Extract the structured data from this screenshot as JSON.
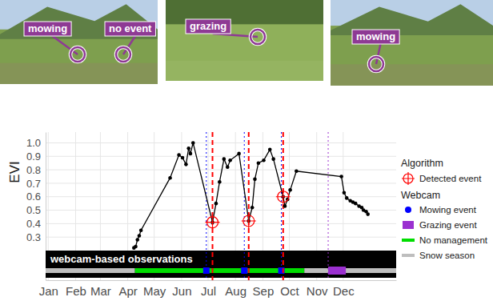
{
  "photos": [
    {
      "annotations": [
        "mowing",
        "no event"
      ]
    },
    {
      "annotations": [
        "grazing"
      ]
    },
    {
      "annotations": [
        "mowing"
      ]
    }
  ],
  "chart_data": {
    "type": "line",
    "y_label": "EVI",
    "x": [
      97,
      99,
      101,
      103,
      105,
      138,
      148,
      152,
      156,
      159,
      161,
      164,
      186,
      190,
      194,
      199,
      203,
      206,
      216,
      227,
      231,
      234,
      238,
      244,
      251,
      255,
      266,
      268,
      271,
      274,
      281,
      332,
      335,
      338,
      342,
      345,
      348,
      352,
      355,
      357,
      360,
      362
    ],
    "series": [
      {
        "color": "#000000",
        "marker": "circle",
        "values": [
          0.22,
          0.23,
          0.28,
          0.31,
          0.35,
          0.74,
          0.91,
          0.89,
          0.84,
          0.96,
          0.92,
          1.0,
          0.41,
          0.55,
          0.71,
          0.88,
          0.82,
          0.87,
          0.92,
          0.42,
          0.52,
          0.73,
          0.85,
          0.87,
          0.95,
          0.88,
          0.6,
          0.53,
          0.58,
          0.65,
          0.79,
          0.75,
          0.63,
          0.59,
          0.57,
          0.56,
          0.55,
          0.53,
          0.52,
          0.5,
          0.49,
          0.47
        ]
      }
    ],
    "xlim": [
      -3,
      394
    ],
    "xticks": [
      {
        "value": 0,
        "label": "Jan"
      },
      {
        "value": 31,
        "label": "Feb"
      },
      {
        "value": 59,
        "label": "Mar"
      },
      {
        "value": 90,
        "label": "Apr"
      },
      {
        "value": 120,
        "label": "May"
      },
      {
        "value": 151,
        "label": "Jun"
      },
      {
        "value": 181,
        "label": "Jul"
      },
      {
        "value": 212,
        "label": "Aug"
      },
      {
        "value": 243,
        "label": "Sep"
      },
      {
        "value": 273,
        "label": "Oct"
      },
      {
        "value": 304,
        "label": "Nov"
      },
      {
        "value": 334,
        "label": "Dec"
      }
    ],
    "ylim": [
      -0.02,
      1.08
    ],
    "yticks": [
      0.3,
      0.4,
      0.5,
      0.6,
      0.7,
      0.8,
      0.9,
      {
        "value": 1,
        "label": "1.0"
      }
    ],
    "grid": true,
    "detected_events": {
      "group": "Algorithm",
      "name": "Detected event",
      "color": "#ff0000",
      "line_style": "dashed",
      "x": [
        186,
        227,
        266
      ],
      "values": [
        0.41,
        0.42,
        0.6
      ]
    },
    "webcam": {
      "group": "Webcam",
      "label": "webcam-based observations",
      "mowing_events": {
        "name": "Mowing event",
        "color": "#0000ff",
        "line_style": "dotted",
        "x": [
          179,
          222,
          264
        ]
      },
      "grazing_events": {
        "name": "Grazing event",
        "color": "#9b30d0",
        "line_style": "dotted",
        "ranges": [
          [
            317,
            337
          ]
        ]
      },
      "segments": [
        {
          "name": "No management",
          "color": "#00dd00",
          "ranges": [
            [
              98,
              290
            ]
          ]
        },
        {
          "name": "Snow season",
          "color": "#bebebe",
          "ranges": [
            [
              -3,
              98
            ],
            [
              290,
              394
            ]
          ]
        }
      ]
    }
  }
}
